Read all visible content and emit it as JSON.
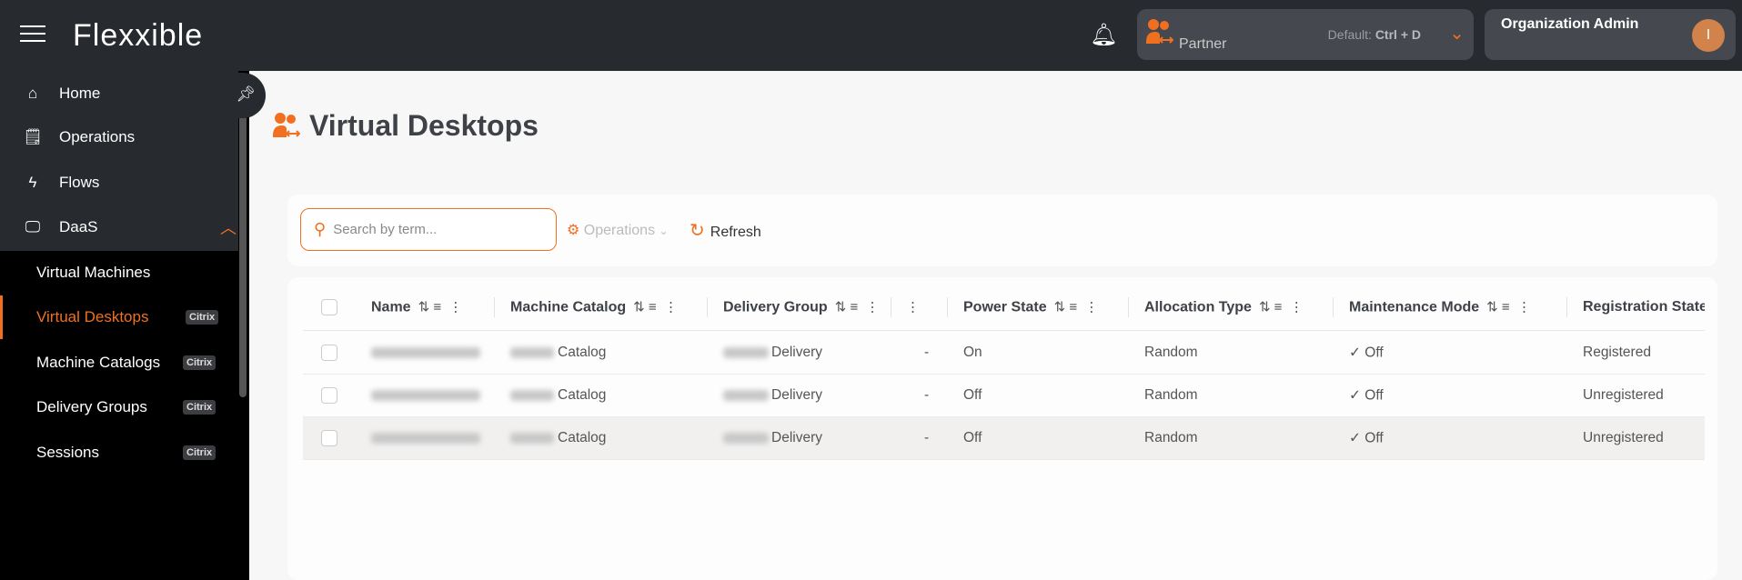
{
  "app": {
    "logo": "Flexxible"
  },
  "topbar": {
    "partner_label": "Partner",
    "default_prefix": "Default: ",
    "default_shortcut": "Ctrl + D",
    "user_role": "Organization Admin",
    "avatar_initial": "I"
  },
  "sidebar": {
    "items": [
      {
        "label": "Home",
        "icon": "home-icon"
      },
      {
        "label": "Operations",
        "icon": "clipboard-check-icon"
      },
      {
        "label": "Flows",
        "icon": "flow-icon"
      },
      {
        "label": "DaaS",
        "icon": "monitor-icon"
      }
    ],
    "subitems": [
      {
        "label": "Virtual Machines",
        "badge": ""
      },
      {
        "label": "Virtual Desktops",
        "badge": "Citrix",
        "active": true
      },
      {
        "label": "Machine Catalogs",
        "badge": "Citrix"
      },
      {
        "label": "Delivery Groups",
        "badge": "Citrix"
      },
      {
        "label": "Sessions",
        "badge": "Citrix"
      }
    ]
  },
  "page": {
    "title": "Virtual Desktops"
  },
  "toolbar": {
    "search_placeholder": "Search by term...",
    "operations_label": "Operations",
    "refresh_label": "Refresh"
  },
  "table": {
    "columns": [
      "Name",
      "Machine Catalog",
      "Delivery Group",
      "",
      "Power State",
      "Allocation Type",
      "Maintenance Mode",
      "Registration State"
    ],
    "rows": [
      {
        "catalog": "Catalog",
        "delivery": "Delivery",
        "extra": "-",
        "power": "On",
        "allocation": "Random",
        "maintenance": "Off",
        "registration": "Registered"
      },
      {
        "catalog": "Catalog",
        "delivery": "Delivery",
        "extra": "-",
        "power": "Off",
        "allocation": "Random",
        "maintenance": "Off",
        "registration": "Unregistered"
      },
      {
        "catalog": "Catalog",
        "delivery": "Delivery",
        "extra": "-",
        "power": "Off",
        "allocation": "Random",
        "maintenance": "Off",
        "registration": "Unregistered"
      }
    ]
  },
  "colors": {
    "accent": "#f07020",
    "topbar": "#272a2e",
    "sidebar": "#000000"
  }
}
